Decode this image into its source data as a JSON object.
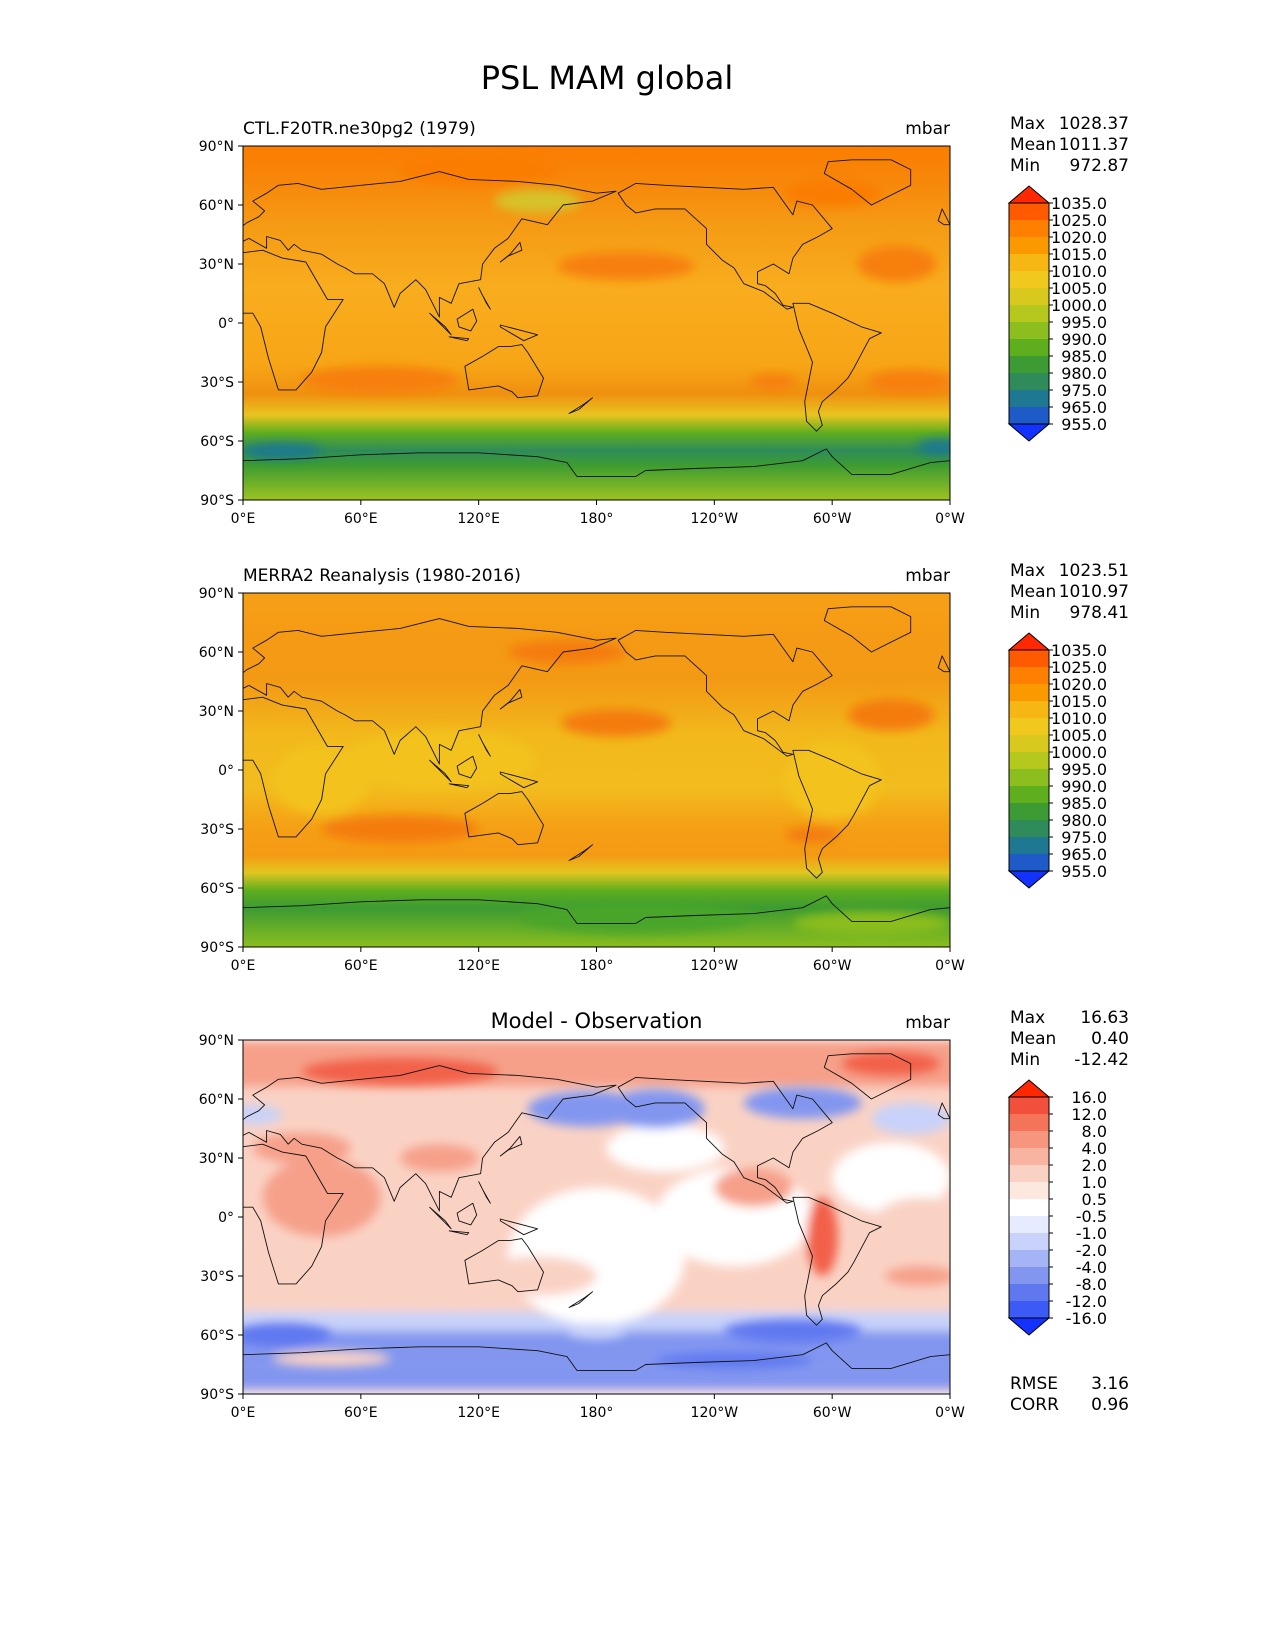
{
  "figure": {
    "title": "PSL MAM global"
  },
  "axes": {
    "lat_ticks": [
      "90°N",
      "60°N",
      "30°N",
      "0°",
      "30°S",
      "60°S",
      "90°S"
    ],
    "lon_ticks": [
      "0°E",
      "60°E",
      "120°E",
      "180°",
      "120°W",
      "60°W",
      "0°W"
    ]
  },
  "panels": [
    {
      "title": "CTL.F20TR.ne30pg2 (1979)",
      "title_centered": false,
      "units": "mbar",
      "kind": "field",
      "stats": {
        "max_label": "Max",
        "max": "1028.37",
        "mean_label": "Mean",
        "mean": "1011.37",
        "min_label": "Min",
        "min": "972.87"
      },
      "colorbar": {
        "levels": [
          "1035.0",
          "1025.0",
          "1020.0",
          "1015.0",
          "1010.0",
          "1005.0",
          "1000.0",
          "995.0",
          "990.0",
          "985.0",
          "980.0",
          "975.0",
          "965.0",
          "955.0"
        ],
        "colors": [
          "#ff2800",
          "#ff5a00",
          "#ff7f00",
          "#fa9a00",
          "#f6b613",
          "#f0c81e",
          "#d9c81e",
          "#b4c81e",
          "#8bbe1e",
          "#5fae1e",
          "#3c9b32",
          "#2f8c5a",
          "#1e7891",
          "#1e5ac8",
          "#1432ff"
        ]
      },
      "map_colors": {
        "polar_north": "#fa7d00",
        "midlat_north": "#f39a14",
        "subpolar_pacific": "#d6c22a",
        "subtropical_high": "#f77f0a",
        "tropics": "#f8ad1e",
        "southern_ocean": "#3c9b32",
        "deep_low": "#1e7891",
        "antarctica": "#8bbe1e"
      }
    },
    {
      "title": "MERRA2 Reanalysis (1980-2016)",
      "title_centered": false,
      "units": "mbar",
      "kind": "field",
      "stats": {
        "max_label": "Max",
        "max": "1023.51",
        "mean_label": "Mean",
        "mean": "1010.97",
        "min_label": "Min",
        "min": "978.41"
      },
      "colorbar": {
        "levels": [
          "1035.0",
          "1025.0",
          "1020.0",
          "1015.0",
          "1010.0",
          "1005.0",
          "1000.0",
          "995.0",
          "990.0",
          "985.0",
          "980.0",
          "975.0",
          "965.0",
          "955.0"
        ],
        "colors": [
          "#ff2800",
          "#ff5a00",
          "#ff7f00",
          "#fa9a00",
          "#f6b613",
          "#f0c81e",
          "#d9c81e",
          "#b4c81e",
          "#8bbe1e",
          "#5fae1e",
          "#3c9b32",
          "#2f8c5a",
          "#1e7891",
          "#1e5ac8",
          "#1432ff"
        ]
      },
      "map_colors": {
        "polar_north": "#f7a016",
        "midlat_north": "#f39a14",
        "subpolar_pacific": "#f2b81c",
        "subtropical_high": "#f47b10",
        "tropics": "#f3c21f",
        "southern_ocean": "#4aa52a",
        "deep_low": "#2f8c5a",
        "antarctica": "#8bbe1e"
      }
    },
    {
      "title": "Model - Observation",
      "title_centered": true,
      "units": "mbar",
      "kind": "diff",
      "stats": {
        "max_label": "Max",
        "max": "16.63",
        "mean_label": "Mean",
        "mean": "0.40",
        "min_label": "Min",
        "min": "-12.42"
      },
      "colorbar": {
        "levels": [
          "16.0",
          "12.0",
          "8.0",
          "4.0",
          "2.0",
          "1.0",
          "0.5",
          "-0.5",
          "-1.0",
          "-2.0",
          "-4.0",
          "-8.0",
          "-12.0",
          "-16.0"
        ],
        "colors": [
          "#ff2800",
          "#f2503c",
          "#f4745a",
          "#f6967e",
          "#f8b4a0",
          "#fad2c4",
          "#fde8e0",
          "#ffffff",
          "#e6ebff",
          "#c8d2fa",
          "#a5b4f5",
          "#8296f0",
          "#5f78f0",
          "#3c5af5",
          "#1432ff"
        ]
      },
      "map_colors": {
        "background": "#ffffff",
        "warm_light": "#fad2c4",
        "warm": "#f6a08a",
        "warm_strong": "#f2604a",
        "cool_light": "#c8d2fa",
        "cool": "#8296f0",
        "cool_strong": "#5f78f0"
      },
      "scores": {
        "rmse_label": "RMSE",
        "rmse": "3.16",
        "corr_label": "CORR",
        "corr": "0.96"
      }
    }
  ]
}
